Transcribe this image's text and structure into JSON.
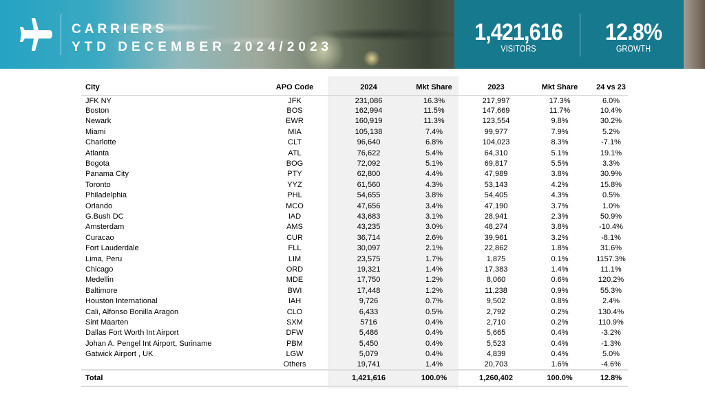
{
  "header": {
    "title": "CARRIERS",
    "subtitle": "YTD DECEMBER 2024/2023",
    "visitors_value": "1,421,616",
    "visitors_label": "VISITORS",
    "growth_value": "12.8%",
    "growth_label": "GROWTH",
    "icon": "airplane-icon"
  },
  "table": {
    "columns": [
      "City",
      "APO Code",
      "2024",
      "Mkt Share",
      "2023",
      "Mkt Share",
      "24 vs 23"
    ],
    "rows": [
      [
        "JFK NY",
        "JFK",
        "231,086",
        "16.3%",
        "217,997",
        "17.3%",
        "6.0%"
      ],
      [
        "Boston",
        "BOS",
        "162,994",
        "11.5%",
        "147,669",
        "11.7%",
        "10.4%"
      ],
      [
        "Newark",
        "EWR",
        "160,919",
        "11.3%",
        "123,554",
        "9.8%",
        "30.2%"
      ],
      [
        "Miami",
        "MIA",
        "105,138",
        "7.4%",
        "99,977",
        "7.9%",
        "5.2%"
      ],
      [
        "Charlotte",
        "CLT",
        "96,640",
        "6.8%",
        "104,023",
        "8.3%",
        "-7.1%"
      ],
      [
        "Atlanta",
        "ATL",
        "76,622",
        "5.4%",
        "64,310",
        "5.1%",
        "19.1%"
      ],
      [
        "Bogota",
        "BOG",
        "72,092",
        "5.1%",
        "69,817",
        "5.5%",
        "3.3%"
      ],
      [
        "Panama City",
        "PTY",
        "62,800",
        "4.4%",
        "47,989",
        "3.8%",
        "30.9%"
      ],
      [
        "Toronto",
        "YYZ",
        "61,560",
        "4.3%",
        "53,143",
        "4.2%",
        "15.8%"
      ],
      [
        "Philadelphia",
        "PHL",
        "54,655",
        "3.8%",
        "54,405",
        "4.3%",
        "0.5%"
      ],
      [
        "Orlando",
        "MCO",
        "47,656",
        "3.4%",
        "47,190",
        "3.7%",
        "1.0%"
      ],
      [
        "G.Bush DC",
        "IAD",
        "43,683",
        "3.1%",
        "28,941",
        "2.3%",
        "50.9%"
      ],
      [
        "Amsterdam",
        "AMS",
        "43,235",
        "3.0%",
        "48,274",
        "3.8%",
        "-10.4%"
      ],
      [
        "Curacao",
        "CUR",
        "36,714",
        "2.6%",
        "39,961",
        "3.2%",
        "-8.1%"
      ],
      [
        "Fort Lauderdale",
        "FLL",
        "30,097",
        "2.1%",
        "22,862",
        "1.8%",
        "31.6%"
      ],
      [
        "Lima, Peru",
        "LIM",
        "23,575",
        "1.7%",
        "1,875",
        "0.1%",
        "1157.3%"
      ],
      [
        "Chicago",
        "ORD",
        "19,321",
        "1.4%",
        "17,383",
        "1.4%",
        "11.1%"
      ],
      [
        "Medellin",
        "MDE",
        "17,750",
        "1.2%",
        "8,060",
        "0.6%",
        "120.2%"
      ],
      [
        "Baltimore",
        "BWI",
        "17,448",
        "1.2%",
        "11,238",
        "0.9%",
        "55.3%"
      ],
      [
        "Houston International",
        "IAH",
        "9,726",
        "0.7%",
        "9,502",
        "0.8%",
        "2.4%"
      ],
      [
        "Cali, Alfonso Bonilla Aragon",
        "CLO",
        "6,433",
        "0.5%",
        "2,792",
        "0.2%",
        "130.4%"
      ],
      [
        "Sint Maarten",
        "SXM",
        "5716",
        "0.4%",
        "2,710",
        "0.2%",
        "110.9%"
      ],
      [
        "Dallas Fort Worth Int Airport",
        "DFW",
        "5,486",
        "0.4%",
        "5,665",
        "0.4%",
        "-3.2%"
      ],
      [
        "Johan A. Pengel Int Airport, Suriname",
        "PBM",
        "5,450",
        "0.4%",
        "5,523",
        "0.4%",
        "-1.3%"
      ],
      [
        "Gatwick Airport , UK",
        "LGW",
        "5,079",
        "0.4%",
        "4,839",
        "0.4%",
        "5.0%"
      ],
      [
        "",
        "Others",
        "19,741",
        "1.4%",
        "20,703",
        "1.6%",
        "-4.6%"
      ]
    ],
    "total": [
      "Total",
      "",
      "1,421,616",
      "100.0%",
      "1,260,402",
      "100.0%",
      "12.8%"
    ]
  }
}
